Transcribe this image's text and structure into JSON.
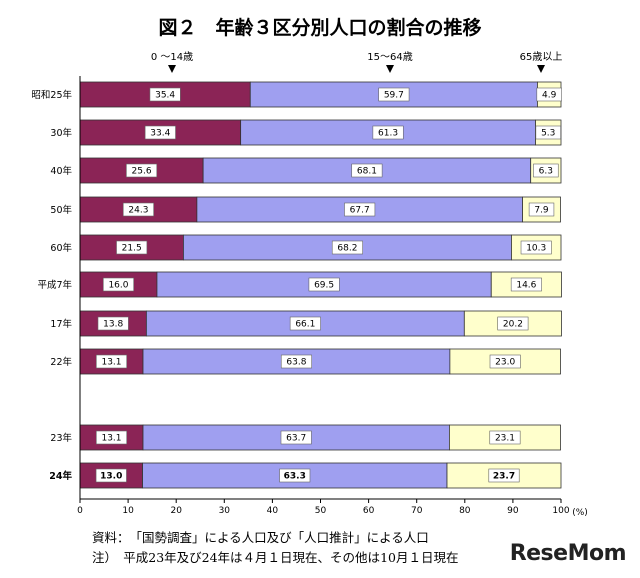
{
  "chart_data": {
    "type": "bar",
    "orientation": "horizontal",
    "stacked": true,
    "title": "図２　年齢３区分別人口の割合の推移",
    "categories": [
      "昭和25年",
      "30年",
      "40年",
      "50年",
      "60年",
      "平成7年",
      "17年",
      "22年",
      "23年",
      "24年"
    ],
    "series": [
      {
        "name": "0 ～14歳",
        "color": "#8b2456",
        "values": [
          35.4,
          33.4,
          25.6,
          24.3,
          21.5,
          16.0,
          13.8,
          13.1,
          13.1,
          13.0
        ]
      },
      {
        "name": "15～64歳",
        "color": "#9f9ff0",
        "values": [
          59.7,
          61.3,
          68.1,
          67.7,
          68.2,
          69.5,
          66.1,
          63.8,
          63.7,
          63.3
        ]
      },
      {
        "name": "65歳以上",
        "color": "#ffffcc",
        "values": [
          4.9,
          5.3,
          6.3,
          7.9,
          10.3,
          14.6,
          20.2,
          23.0,
          23.1,
          23.7
        ]
      }
    ],
    "value_labels": [
      [
        "35.4",
        "59.7",
        "4.9"
      ],
      [
        "33.4",
        "61.3",
        "5.3"
      ],
      [
        "25.6",
        "68.1",
        "6.3"
      ],
      [
        "24.3",
        "67.7",
        "7.9"
      ],
      [
        "21.5",
        "68.2",
        "10.3"
      ],
      [
        "16.0",
        "69.5",
        "14.6"
      ],
      [
        "13.8",
        "66.1",
        "20.2"
      ],
      [
        "13.1",
        "63.8",
        "23.0"
      ],
      [
        "13.1",
        "63.7",
        "23.1"
      ],
      [
        "13.0",
        "63.3",
        "23.7"
      ]
    ],
    "highlight_category": "24年",
    "xlim": [
      0,
      100
    ],
    "xticks": [
      "0",
      "10",
      "20",
      "30",
      "40",
      "50",
      "60",
      "70",
      "80",
      "90",
      "100"
    ],
    "xunit": "(%)",
    "legend": "above bars with arrows",
    "grid": false
  },
  "notes": {
    "source": "資料：　「国勢調査」による人口及び「人口推計」による人口",
    "note": "注）　平成23年及び24年は４月１日現在、その他は10月１日現在"
  },
  "brand": {
    "text": "ReseMom"
  }
}
